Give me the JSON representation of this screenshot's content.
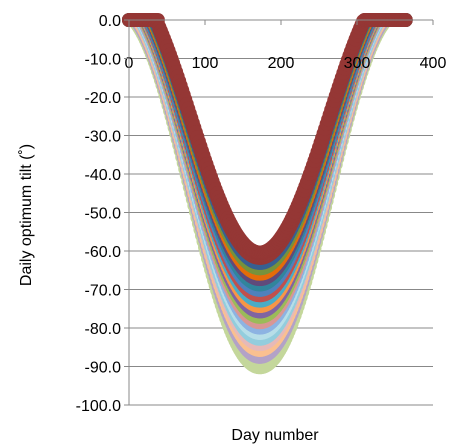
{
  "chart_data": {
    "type": "scatter",
    "title": "",
    "xlabel": "Day number",
    "ylabel": "Daily optimum tilt (˚)",
    "xlim": [
      0,
      400
    ],
    "ylim": [
      -100,
      0
    ],
    "x_ticks": [
      "0",
      "100",
      "200",
      "300",
      "400"
    ],
    "y_ticks": [
      "0.0",
      "-10.0",
      "-20.0",
      "-30.0",
      "-40.0",
      "-50.0",
      "-60.0",
      "-70.0",
      "-80.0",
      "-90.0",
      "-100.0"
    ],
    "grid": "horizontal",
    "legend": "none",
    "curve_model": "tilt = offset - amplitude * sin(2*pi*(day - 81)/365), clipped to [ymin, 0]",
    "series": [
      {
        "color": "#c4d79b",
        "offset": -44.2,
        "amplitude": 46,
        "clip_min": -24
      },
      {
        "color": "#b3a2c7",
        "offset": -42.5,
        "amplitude": 45,
        "clip_min": -22
      },
      {
        "color": "#fac090",
        "offset": -41.2,
        "amplitude": 44.5,
        "clip_min": -20
      },
      {
        "color": "#e6b9b8",
        "offset": -40.2,
        "amplitude": 44,
        "clip_min": -18
      },
      {
        "color": "#93cddd",
        "offset": -39.3,
        "amplitude": 43.5,
        "clip_min": -16
      },
      {
        "color": "#b7dee8",
        "offset": -38.3,
        "amplitude": 43,
        "clip_min": -15
      },
      {
        "color": "#8db3e2",
        "offset": -37.4,
        "amplitude": 42.5,
        "clip_min": -14
      },
      {
        "color": "#d99694",
        "offset": -36.5,
        "amplitude": 42,
        "clip_min": -13
      },
      {
        "color": "#9bbb59",
        "offset": -35.6,
        "amplitude": 41.5,
        "clip_min": -12
      },
      {
        "color": "#8064a2",
        "offset": -34.7,
        "amplitude": 41,
        "clip_min": -11
      },
      {
        "color": "#f79646",
        "offset": -33.8,
        "amplitude": 40.5,
        "clip_min": -10
      },
      {
        "color": "#4bacc6",
        "offset": -32.9,
        "amplitude": 40,
        "clip_min": -9
      },
      {
        "color": "#c0504d",
        "offset": -32.0,
        "amplitude": 39.5,
        "clip_min": -8
      },
      {
        "color": "#4f81bd",
        "offset": -31.1,
        "amplitude": 39,
        "clip_min": -7
      },
      {
        "color": "#31859c",
        "offset": -30.2,
        "amplitude": 38.5,
        "clip_min": -6
      },
      {
        "color": "#604a7b",
        "offset": -29.3,
        "amplitude": 38,
        "clip_min": -5
      },
      {
        "color": "#e46c0a",
        "offset": -28.4,
        "amplitude": 37.5,
        "clip_min": -4
      },
      {
        "color": "#76923c",
        "offset": -27.5,
        "amplitude": 37,
        "clip_min": -3
      },
      {
        "color": "#376092",
        "offset": -26.6,
        "amplitude": 36.5,
        "clip_min": -2
      },
      {
        "color": "#953735",
        "offset": -25.8,
        "amplitude": 36,
        "clip_min": -1
      },
      {
        "color": "#953735",
        "offset": -24.9,
        "amplitude": 35.5,
        "clip_min": 0
      }
    ]
  }
}
